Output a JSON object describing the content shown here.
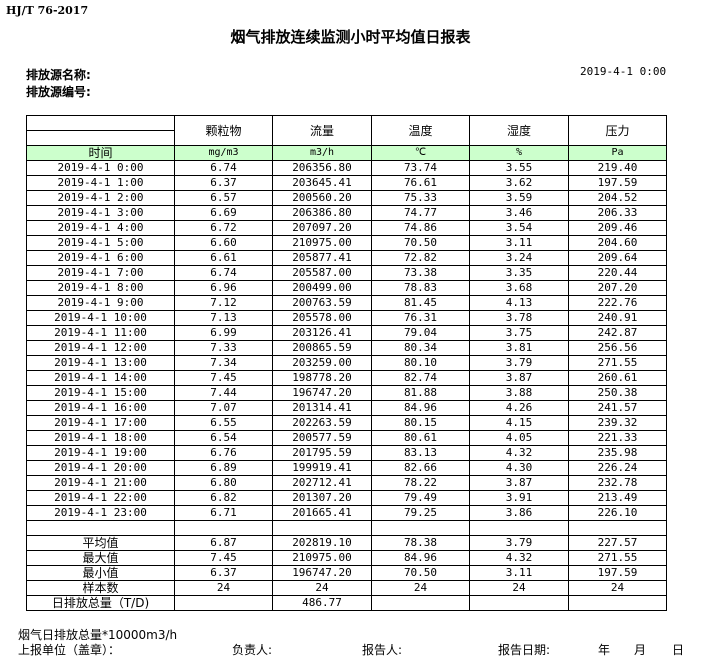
{
  "standard": "HJ/T  76-2017",
  "title": "烟气排放连续监测小时平均值日报表",
  "source_name_label": "排放源名称:",
  "source_id_label": "排放源编号:",
  "report_datetime": "2019-4-1  0:00",
  "table": {
    "headers": [
      "颗粒物",
      "流量",
      "温度",
      "湿度",
      "压力"
    ],
    "time_label": "时间",
    "units": [
      "mg/m3",
      "m3/h",
      "℃",
      "%",
      "Pa"
    ],
    "rows": [
      [
        "2019-4-1 0:00",
        "6.74",
        "206356.80",
        "73.74",
        "3.55",
        "219.40"
      ],
      [
        "2019-4-1 1:00",
        "6.37",
        "203645.41",
        "76.61",
        "3.62",
        "197.59"
      ],
      [
        "2019-4-1 2:00",
        "6.57",
        "200560.20",
        "75.33",
        "3.59",
        "204.52"
      ],
      [
        "2019-4-1 3:00",
        "6.69",
        "206386.80",
        "74.77",
        "3.46",
        "206.33"
      ],
      [
        "2019-4-1 4:00",
        "6.72",
        "207097.20",
        "74.86",
        "3.54",
        "209.46"
      ],
      [
        "2019-4-1 5:00",
        "6.60",
        "210975.00",
        "70.50",
        "3.11",
        "204.60"
      ],
      [
        "2019-4-1 6:00",
        "6.61",
        "205877.41",
        "72.82",
        "3.24",
        "209.64"
      ],
      [
        "2019-4-1 7:00",
        "6.74",
        "205587.00",
        "73.38",
        "3.35",
        "220.44"
      ],
      [
        "2019-4-1 8:00",
        "6.96",
        "200499.00",
        "78.83",
        "3.68",
        "207.20"
      ],
      [
        "2019-4-1 9:00",
        "7.12",
        "200763.59",
        "81.45",
        "4.13",
        "222.76"
      ],
      [
        "2019-4-1 10:00",
        "7.13",
        "205578.00",
        "76.31",
        "3.78",
        "240.91"
      ],
      [
        "2019-4-1 11:00",
        "6.99",
        "203126.41",
        "79.04",
        "3.75",
        "242.87"
      ],
      [
        "2019-4-1 12:00",
        "7.33",
        "200865.59",
        "80.34",
        "3.81",
        "256.56"
      ],
      [
        "2019-4-1 13:00",
        "7.34",
        "203259.00",
        "80.10",
        "3.79",
        "271.55"
      ],
      [
        "2019-4-1 14:00",
        "7.45",
        "198778.20",
        "82.74",
        "3.87",
        "260.61"
      ],
      [
        "2019-4-1 15:00",
        "7.44",
        "196747.20",
        "81.88",
        "3.88",
        "250.38"
      ],
      [
        "2019-4-1 16:00",
        "7.07",
        "201314.41",
        "84.96",
        "4.26",
        "241.57"
      ],
      [
        "2019-4-1 17:00",
        "6.55",
        "202263.59",
        "80.15",
        "4.15",
        "239.32"
      ],
      [
        "2019-4-1 18:00",
        "6.54",
        "200577.59",
        "80.61",
        "4.05",
        "221.33"
      ],
      [
        "2019-4-1 19:00",
        "6.76",
        "201795.59",
        "83.13",
        "4.32",
        "235.98"
      ],
      [
        "2019-4-1 20:00",
        "6.89",
        "199919.41",
        "82.66",
        "4.30",
        "226.24"
      ],
      [
        "2019-4-1 21:00",
        "6.80",
        "202712.41",
        "78.22",
        "3.87",
        "232.78"
      ],
      [
        "2019-4-1 22:00",
        "6.82",
        "201307.20",
        "79.49",
        "3.91",
        "213.49"
      ],
      [
        "2019-4-1 23:00",
        "6.71",
        "201665.41",
        "79.25",
        "3.86",
        "226.10"
      ]
    ],
    "summary": [
      [
        "平均值",
        "6.87",
        "202819.10",
        "78.38",
        "3.79",
        "227.57"
      ],
      [
        "最大值",
        "7.45",
        "210975.00",
        "84.96",
        "4.32",
        "271.55"
      ],
      [
        "最小值",
        "6.37",
        "196747.20",
        "70.50",
        "3.11",
        "197.59"
      ],
      [
        "样本数",
        "24",
        "24",
        "24",
        "24",
        "24"
      ],
      [
        "日排放总量（T/D)",
        "",
        "486.77",
        "",
        "",
        ""
      ]
    ]
  },
  "footer": {
    "note": "烟气日排放总量*10000m3/h",
    "unit_label": "上报单位（盖章）：",
    "responsible_label": "负责人:",
    "reporter_label": "报告人:",
    "report_date_label": "报告日期:",
    "year": "年",
    "month": "月",
    "day": "日"
  }
}
